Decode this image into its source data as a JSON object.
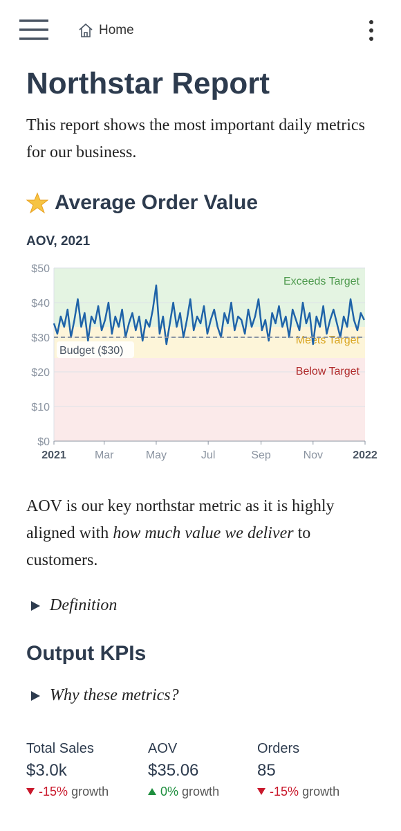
{
  "header": {
    "breadcrumb": "Home"
  },
  "title": "Northstar Report",
  "intro": "This report shows the most important daily metrics for our business.",
  "section1": {
    "heading": "Average Order Value",
    "chart_data": {
      "type": "line",
      "title": "AOV, 2021",
      "x": [
        0,
        4,
        8,
        12,
        16,
        20,
        24,
        28,
        32,
        36,
        40,
        44,
        48,
        52,
        56,
        60,
        64,
        68,
        72,
        76,
        80,
        84,
        88,
        92,
        96,
        100,
        104,
        108,
        112,
        116,
        120,
        124,
        128,
        132,
        136,
        140,
        144,
        148,
        152,
        156,
        160,
        164,
        168,
        172,
        176,
        180,
        184,
        188,
        192,
        196,
        200,
        204,
        208,
        212,
        216,
        220,
        224,
        228,
        232,
        236,
        240,
        244,
        248,
        252,
        256,
        260,
        264,
        268,
        272,
        276,
        280,
        284,
        288,
        292,
        296,
        300,
        304,
        308,
        312,
        316,
        320,
        324,
        328,
        332,
        336,
        340,
        344,
        348,
        352,
        356,
        360,
        364
      ],
      "series": [
        {
          "name": "AOV",
          "color": "#1f63a8",
          "values": [
            34,
            31,
            36,
            33,
            38,
            30,
            35,
            41,
            33,
            37,
            29,
            36,
            34,
            39,
            32,
            35,
            40,
            31,
            36,
            33,
            38,
            30,
            34,
            37,
            32,
            36,
            29,
            35,
            33,
            38,
            45,
            31,
            36,
            28,
            34,
            40,
            33,
            37,
            30,
            35,
            41,
            32,
            36,
            34,
            39,
            31,
            35,
            38,
            33,
            30,
            37,
            34,
            40,
            32,
            36,
            35,
            31,
            38,
            33,
            36,
            41,
            32,
            35,
            29,
            37,
            34,
            39,
            33,
            36,
            30,
            38,
            35,
            32,
            40,
            34,
            37,
            28,
            36,
            33,
            39,
            31,
            35,
            38,
            34,
            30,
            36,
            33,
            41,
            35,
            32,
            37,
            35
          ]
        }
      ],
      "xlim": [
        0,
        365
      ],
      "xticks": [
        {
          "value": 0,
          "label": "2021"
        },
        {
          "value": 59,
          "label": "Mar"
        },
        {
          "value": 120,
          "label": "May"
        },
        {
          "value": 181,
          "label": "Jul"
        },
        {
          "value": 243,
          "label": "Sep"
        },
        {
          "value": 304,
          "label": "Nov"
        },
        {
          "value": 365,
          "label": "2022"
        }
      ],
      "ylim": [
        0,
        50
      ],
      "yticks": [
        {
          "value": 0,
          "label": "$0"
        },
        {
          "value": 10,
          "label": "$10"
        },
        {
          "value": 20,
          "label": "$20"
        },
        {
          "value": 30,
          "label": "$30"
        },
        {
          "value": 40,
          "label": "$40"
        },
        {
          "value": 50,
          "label": "$50"
        }
      ],
      "grid": true,
      "bands": [
        {
          "label": "Exceeds Target",
          "from": 33,
          "to": 50,
          "color": "#e4f4e2",
          "label_color": "#4e9a4e"
        },
        {
          "label": "Meets Target",
          "from": 24,
          "to": 33,
          "color": "#fdf5d9",
          "label_color": "#d9a520"
        },
        {
          "label": "Below Target",
          "from": 0,
          "to": 24,
          "color": "#fbeaea",
          "label_color": "#b02a2a"
        }
      ],
      "reference": {
        "label": "Budget ($30)",
        "value": 30
      }
    },
    "paragraph": [
      "AOV is our key northstar metric as it is highly aligned with ",
      "how much value we deliver",
      " to customers."
    ],
    "details": "Definition"
  },
  "section2": {
    "heading": "Output KPIs",
    "details": "Why these metrics?",
    "kpis": [
      {
        "label": "Total Sales",
        "value": "$3.0k",
        "change": "-15%",
        "trend": "down",
        "suffix": "growth"
      },
      {
        "label": "AOV",
        "value": "$35.06",
        "change": "0%",
        "trend": "up",
        "suffix": "growth"
      },
      {
        "label": "Orders",
        "value": "85",
        "change": "-15%",
        "trend": "down",
        "suffix": "growth"
      }
    ]
  }
}
